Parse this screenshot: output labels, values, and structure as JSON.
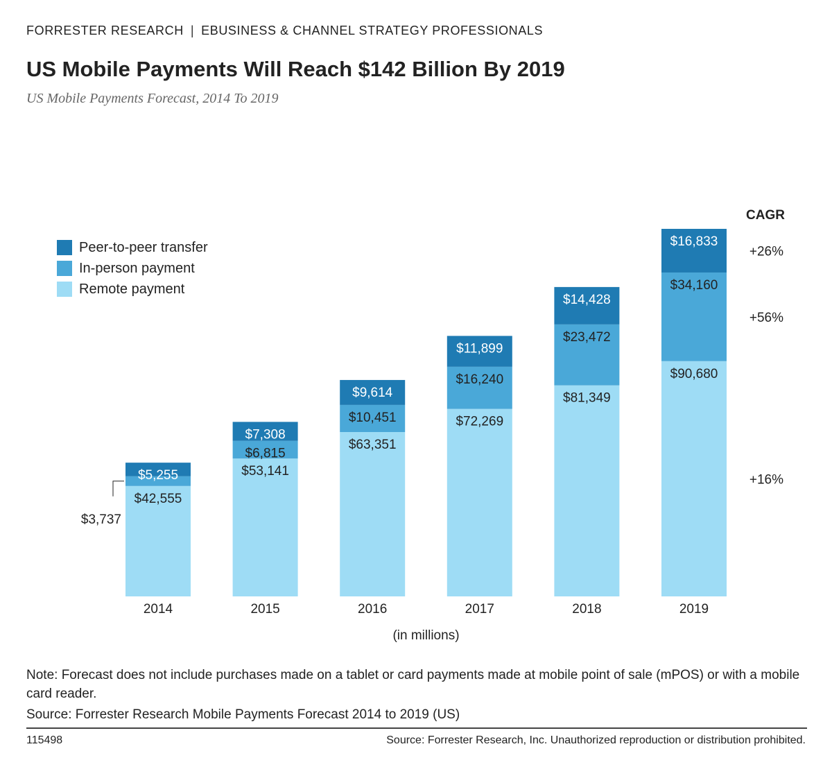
{
  "header": {
    "org": "FORRESTER RESEARCH",
    "separator": "|",
    "audience": "EBUSINESS & CHANNEL STRATEGY PROFESSIONALS"
  },
  "colors": {
    "p2p": "#1f7bb3",
    "in_person": "#4aa8d8",
    "remote": "#9edcf5"
  },
  "chart_data": {
    "type": "bar",
    "stacked": true,
    "title": "US Mobile Payments Will Reach $142 Billion By 2019",
    "subtitle": "US Mobile Payments Forecast, 2014 To 2019",
    "xlabel": "(in millions)",
    "ylabel": "",
    "categories": [
      "2014",
      "2015",
      "2016",
      "2017",
      "2018",
      "2019"
    ],
    "series": [
      {
        "name": "Remote payment",
        "key": "remote",
        "values": [
          42555,
          53141,
          63351,
          72269,
          81349,
          90680
        ],
        "labels": [
          "$42,555",
          "$53,141",
          "$63,351",
          "$72,269",
          "$81,349",
          "$90,680"
        ],
        "cagr": "+16%"
      },
      {
        "name": "In-person payment",
        "key": "in_person",
        "values": [
          3737,
          6815,
          10451,
          16240,
          23472,
          34160
        ],
        "labels": [
          "$3,737",
          "$6,815",
          "$10,451",
          "$16,240",
          "$23,472",
          "$34,160"
        ],
        "cagr": "+56%"
      },
      {
        "name": "Peer-to-peer transfer",
        "key": "p2p",
        "values": [
          5255,
          7308,
          9614,
          11899,
          14428,
          16833
        ],
        "labels": [
          "$5,255",
          "$7,308",
          "$9,614",
          "$11,899",
          "$14,428",
          "$16,833"
        ],
        "cagr": "+26%"
      }
    ],
    "ylim": [
      0,
      141673
    ],
    "cagr_header": "CAGR",
    "legend": [
      "Peer-to-peer transfer",
      "In-person payment",
      "Remote payment"
    ],
    "legend_position": "top-left"
  },
  "note": "Note: Forecast does not include purchases made on a tablet or card payments made at mobile point of sale (mPOS) or with a mobile card reader.",
  "source": "Source: Forrester Research Mobile Payments Forecast 2014 to 2019 (US)",
  "footer": {
    "id": "115498",
    "copyright": "Source: Forrester Research, Inc. Unauthorized reproduction or distribution prohibited."
  }
}
